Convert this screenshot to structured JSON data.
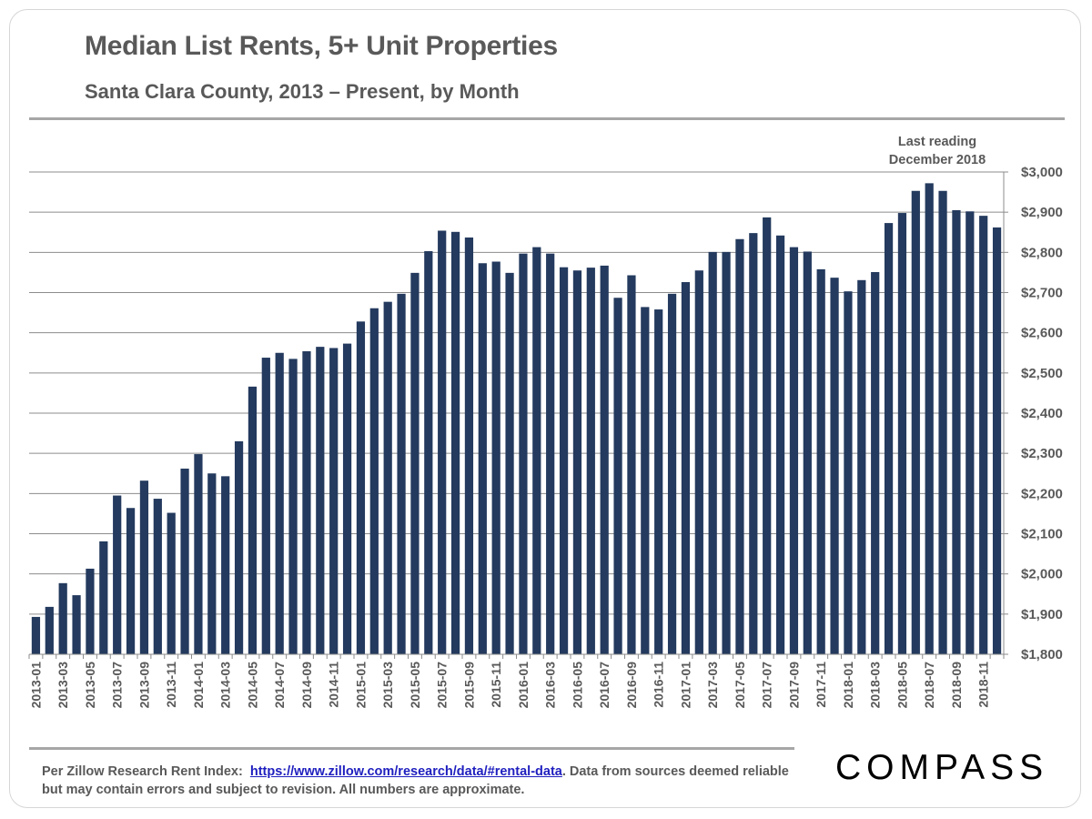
{
  "header": {
    "title": "Median List Rents, 5+ Unit Properties",
    "subtitle": "Santa Clara County, 2013 – Present, by Month"
  },
  "footer": {
    "source_prefix": "Per Zillow Research Rent Index:",
    "source_link": "https://www.zillow.com/research/data/#rental-data",
    "source_suffix": ". Data from sources deemed reliable but may contain errors and subject to revision. All numbers are approximate.",
    "logo": "COMPASS"
  },
  "chart_data": {
    "type": "bar",
    "title": "Median List Rents, 5+ Unit Properties",
    "subtitle": "Santa Clara County, 2013 – Present, by Month",
    "xlabel": "",
    "ylabel": "",
    "ylim": [
      1800,
      3000
    ],
    "y_ticks": [
      1800,
      1900,
      2000,
      2100,
      2200,
      2300,
      2400,
      2500,
      2600,
      2700,
      2800,
      2900,
      3000
    ],
    "y_tick_labels": [
      "$1,800",
      "$1,900",
      "$2,000",
      "$2,100",
      "$2,200",
      "$2,300",
      "$2,400",
      "$2,500",
      "$2,600",
      "$2,700",
      "$2,800",
      "$2,900",
      "$3,000"
    ],
    "y_axis_position": "right",
    "grid": true,
    "bar_color": "#243a5e",
    "annotation": "Last reading\nDecember 2018",
    "categories": [
      "2013-01",
      "2013-02",
      "2013-03",
      "2013-04",
      "2013-05",
      "2013-06",
      "2013-07",
      "2013-08",
      "2013-09",
      "2013-10",
      "2013-11",
      "2013-12",
      "2014-01",
      "2014-02",
      "2014-03",
      "2014-04",
      "2014-05",
      "2014-06",
      "2014-07",
      "2014-08",
      "2014-09",
      "2014-10",
      "2014-11",
      "2014-12",
      "2015-01",
      "2015-02",
      "2015-03",
      "2015-04",
      "2015-05",
      "2015-06",
      "2015-07",
      "2015-08",
      "2015-09",
      "2015-10",
      "2015-11",
      "2015-12",
      "2016-01",
      "2016-02",
      "2016-03",
      "2016-04",
      "2016-05",
      "2016-06",
      "2016-07",
      "2016-08",
      "2016-09",
      "2016-10",
      "2016-11",
      "2016-12",
      "2017-01",
      "2017-02",
      "2017-03",
      "2017-04",
      "2017-05",
      "2017-06",
      "2017-07",
      "2017-08",
      "2017-09",
      "2017-10",
      "2017-11",
      "2017-12",
      "2018-01",
      "2018-02",
      "2018-03",
      "2018-04",
      "2018-05",
      "2018-06",
      "2018-07",
      "2018-08",
      "2018-09",
      "2018-10",
      "2018-11",
      "2018-12"
    ],
    "x_tick_labels": [
      "2013-01",
      "2013-03",
      "2013-05",
      "2013-07",
      "2013-09",
      "2013-11",
      "2014-01",
      "2014-03",
      "2014-05",
      "2014-07",
      "2014-09",
      "2014-11",
      "2015-01",
      "2015-03",
      "2015-05",
      "2015-07",
      "2015-09",
      "2015-11",
      "2016-01",
      "2016-03",
      "2016-05",
      "2016-07",
      "2016-09",
      "2016-11",
      "2017-01",
      "2017-03",
      "2017-05",
      "2017-07",
      "2017-09",
      "2017-11",
      "2018-01",
      "2018-03",
      "2018-05",
      "2018-07",
      "2018-09",
      "2018-11"
    ],
    "values": [
      1893,
      1918,
      1977,
      1947,
      2013,
      2081,
      2195,
      2164,
      2232,
      2187,
      2152,
      2262,
      2298,
      2250,
      2243,
      2330,
      2466,
      2538,
      2550,
      2535,
      2554,
      2565,
      2562,
      2573,
      2628,
      2661,
      2677,
      2697,
      2749,
      2803,
      2854,
      2851,
      2837,
      2773,
      2777,
      2749,
      2797,
      2813,
      2797,
      2763,
      2755,
      2762,
      2767,
      2687,
      2743,
      2664,
      2658,
      2697,
      2726,
      2755,
      2801,
      2801,
      2833,
      2848,
      2887,
      2842,
      2813,
      2802,
      2758,
      2737,
      2703,
      2731,
      2751,
      2873,
      2898,
      2953,
      2972,
      2953,
      2905,
      2902,
      2891,
      2862
    ]
  }
}
